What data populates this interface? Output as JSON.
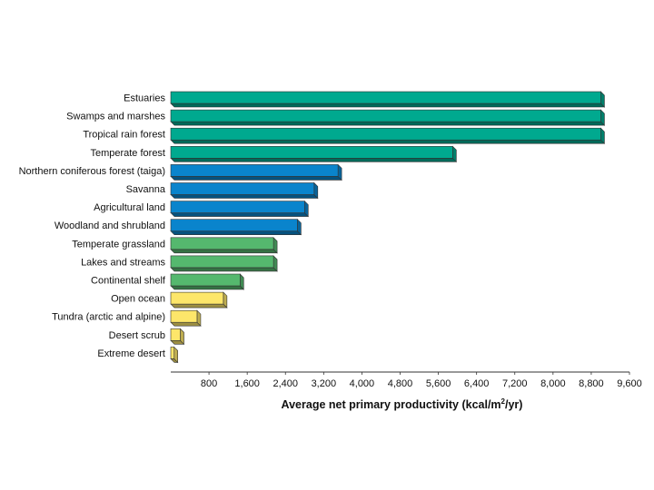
{
  "chart_data": {
    "type": "bar",
    "orientation": "horizontal",
    "bar_style": "3d",
    "title": "",
    "xlabel_prefix": "Average net primary productivity (kcal/m",
    "xlabel_sup": "2",
    "xlabel_suffix": "/yr)",
    "ylabel": "",
    "xlim": [
      0,
      9600
    ],
    "xticks": [
      800,
      1600,
      2400,
      3200,
      4000,
      4800,
      5600,
      6400,
      7200,
      8000,
      8800,
      9600
    ],
    "xtick_labels": [
      "800",
      "1,600",
      "2,400",
      "3,200",
      "4,000",
      "4,800",
      "5,600",
      "6,400",
      "7,200",
      "8,000",
      "8,800",
      "9,600"
    ],
    "grid": false,
    "legend": false,
    "categories": [
      "Estuaries",
      "Swamps and marshes",
      "Tropical rain forest",
      "Temperate forest",
      "Northern coniferous forest (taiga)",
      "Savanna",
      "Agricultural land",
      "Woodland and shrubland",
      "Temperate grassland",
      "Lakes and streams",
      "Continental shelf",
      "Open ocean",
      "Tundra (arctic and alpine)",
      "Desert scrub",
      "Extreme desert"
    ],
    "values": [
      9000,
      9000,
      9000,
      5900,
      3500,
      3000,
      2800,
      2650,
      2150,
      2150,
      1450,
      1100,
      550,
      200,
      70
    ],
    "colors": [
      "#00a98f",
      "#00a98f",
      "#00a98f",
      "#00a98f",
      "#0a84cc",
      "#0a84cc",
      "#0a84cc",
      "#0a84cc",
      "#55b86e",
      "#55b86e",
      "#55b86e",
      "#fde66a",
      "#fde66a",
      "#fde66a",
      "#fde66a"
    ]
  }
}
